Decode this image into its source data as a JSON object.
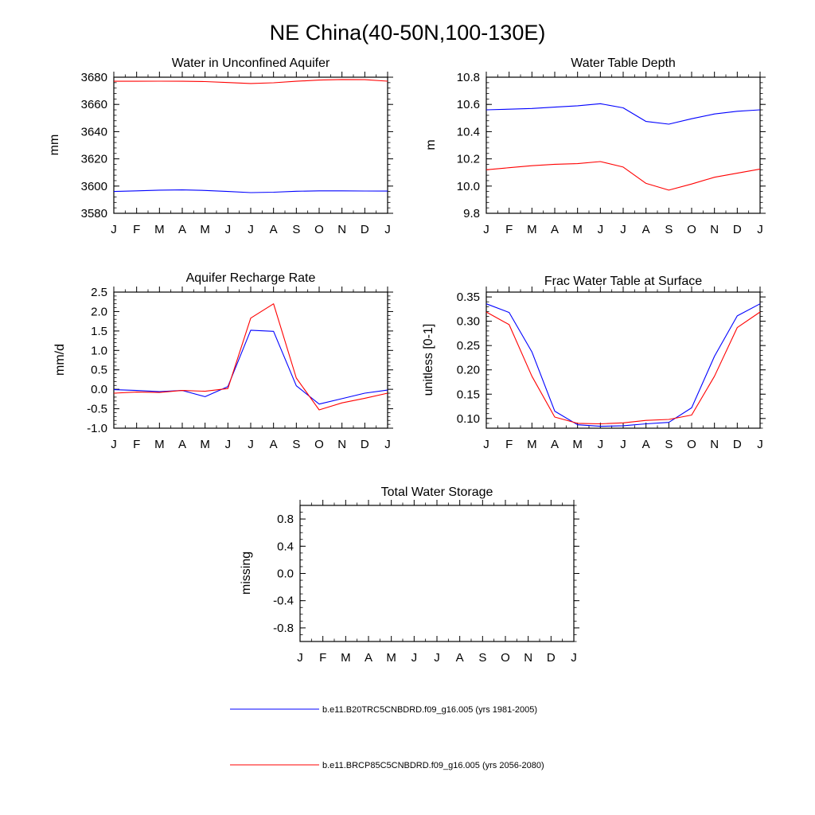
{
  "figure_title": "NE China(40-50N,100-130E)",
  "colors": {
    "series1": "#0000ff",
    "series2": "#ff0000",
    "axis": "#000000"
  },
  "legend": [
    {
      "label": "b.e11.B20TRC5CNBDRD.f09_g16.005 (yrs 1981-2005)",
      "color": "#0000ff"
    },
    {
      "label": "b.e11.BRCP85C5CNBDRD.f09_g16.005 (yrs 2056-2080)",
      "color": "#ff0000"
    }
  ],
  "chart_data": [
    {
      "type": "line",
      "title": "Water in Unconfined Aquifer",
      "xlabel": "",
      "ylabel": "mm",
      "categories": [
        "J",
        "F",
        "M",
        "A",
        "M",
        "J",
        "J",
        "A",
        "S",
        "O",
        "N",
        "D",
        "J"
      ],
      "ylim": [
        3580,
        3680
      ],
      "yticks": [
        3580,
        3600,
        3620,
        3640,
        3660,
        3680
      ],
      "ytick_labels": [
        "3580",
        "3600",
        "3620",
        "3640",
        "3660",
        "3680"
      ],
      "yminor": 5,
      "series": [
        {
          "name": "b.e11.B20TRC5CNBDRD.f09_g16.005 (yrs 1981-2005)",
          "color": "#0000ff",
          "values": [
            3596,
            3596.5,
            3597,
            3597.2,
            3596.8,
            3596,
            3595.2,
            3595.5,
            3596.2,
            3596.5,
            3596.5,
            3596.4,
            3596.3
          ]
        },
        {
          "name": "b.e11.BRCP85C5CNBDRD.f09_g16.005 (yrs 2056-2080)",
          "color": "#ff0000",
          "values": [
            3677,
            3677,
            3677.1,
            3677,
            3676.8,
            3676.1,
            3675.4,
            3675.9,
            3677,
            3677.9,
            3678.3,
            3678.2,
            3677.1
          ]
        }
      ]
    },
    {
      "type": "line",
      "title": "Water Table Depth",
      "xlabel": "",
      "ylabel": "m",
      "categories": [
        "J",
        "F",
        "M",
        "A",
        "M",
        "J",
        "J",
        "A",
        "S",
        "O",
        "N",
        "D",
        "J"
      ],
      "ylim": [
        9.8,
        10.8
      ],
      "yticks": [
        9.8,
        10.0,
        10.2,
        10.4,
        10.6,
        10.8
      ],
      "ytick_labels": [
        "9.8",
        "10.0",
        "10.2",
        "10.4",
        "10.6",
        "10.8"
      ],
      "yminor": 5,
      "series": [
        {
          "name": "b.e11.B20TRC5CNBDRD.f09_g16.005 (yrs 1981-2005)",
          "color": "#0000ff",
          "values": [
            10.56,
            10.565,
            10.57,
            10.58,
            10.59,
            10.605,
            10.575,
            10.475,
            10.455,
            10.495,
            10.53,
            10.55,
            10.56
          ]
        },
        {
          "name": "b.e11.BRCP85C5CNBDRD.f09_g16.005 (yrs 2056-2080)",
          "color": "#ff0000",
          "values": [
            10.12,
            10.135,
            10.15,
            10.16,
            10.165,
            10.18,
            10.14,
            10.02,
            9.97,
            10.015,
            10.065,
            10.095,
            10.125
          ]
        }
      ]
    },
    {
      "type": "line",
      "title": "Aquifer Recharge Rate",
      "xlabel": "",
      "ylabel": "mm/d",
      "categories": [
        "J",
        "F",
        "M",
        "A",
        "M",
        "J",
        "J",
        "A",
        "S",
        "O",
        "N",
        "D",
        "J"
      ],
      "ylim": [
        -1.0,
        2.5
      ],
      "yticks": [
        -1.0,
        -0.5,
        0.0,
        0.5,
        1.0,
        1.5,
        2.0,
        2.5
      ],
      "ytick_labels": [
        "-1.0",
        "-0.5",
        "0.0",
        "0.5",
        "1.0",
        "1.5",
        "2.0",
        "2.5"
      ],
      "yminor": 5,
      "series": [
        {
          "name": "b.e11.B20TRC5CNBDRD.f09_g16.005 (yrs 1981-2005)",
          "color": "#0000ff",
          "values": [
            -0.01,
            -0.03,
            -0.06,
            -0.03,
            -0.19,
            0.07,
            1.52,
            1.49,
            0.09,
            -0.38,
            -0.24,
            -0.1,
            -0.02
          ]
        },
        {
          "name": "b.e11.BRCP85C5CNBDRD.f09_g16.005 (yrs 2056-2080)",
          "color": "#ff0000",
          "values": [
            -0.1,
            -0.07,
            -0.08,
            -0.03,
            -0.05,
            0.02,
            1.83,
            2.2,
            0.29,
            -0.53,
            -0.35,
            -0.23,
            -0.1
          ]
        }
      ]
    },
    {
      "type": "line",
      "title": "Frac Water Table at Surface",
      "xlabel": "",
      "ylabel": "unitless [0-1]",
      "categories": [
        "J",
        "F",
        "M",
        "A",
        "M",
        "J",
        "J",
        "A",
        "S",
        "O",
        "N",
        "D",
        "J"
      ],
      "ylim": [
        0.08,
        0.36
      ],
      "yticks": [
        0.1,
        0.15,
        0.2,
        0.25,
        0.3,
        0.35
      ],
      "ytick_labels": [
        "0.10",
        "0.15",
        "0.20",
        "0.25",
        "0.30",
        "0.35"
      ],
      "yminor": 5,
      "series": [
        {
          "name": "b.e11.B20TRC5CNBDRD.f09_g16.005 (yrs 1981-2005)",
          "color": "#0000ff",
          "values": [
            0.336,
            0.318,
            0.237,
            0.115,
            0.087,
            0.084,
            0.085,
            0.089,
            0.092,
            0.122,
            0.228,
            0.311,
            0.336
          ]
        },
        {
          "name": "b.e11.BRCP85C5CNBDRD.f09_g16.005 (yrs 2056-2080)",
          "color": "#ff0000",
          "values": [
            0.319,
            0.293,
            0.187,
            0.103,
            0.09,
            0.089,
            0.091,
            0.096,
            0.098,
            0.107,
            0.187,
            0.287,
            0.319
          ]
        }
      ]
    },
    {
      "type": "line",
      "title": "Total Water Storage",
      "xlabel": "",
      "ylabel": "missing",
      "categories": [
        "J",
        "F",
        "M",
        "A",
        "M",
        "J",
        "J",
        "A",
        "S",
        "O",
        "N",
        "D",
        "J"
      ],
      "ylim": [
        -1.0,
        1.0
      ],
      "yticks": [
        -0.8,
        -0.4,
        0.0,
        0.4,
        0.8
      ],
      "ytick_labels": [
        "-0.8",
        "-0.4",
        "0.0",
        "0.4",
        "0.8"
      ],
      "yminor": 4,
      "series": []
    }
  ]
}
